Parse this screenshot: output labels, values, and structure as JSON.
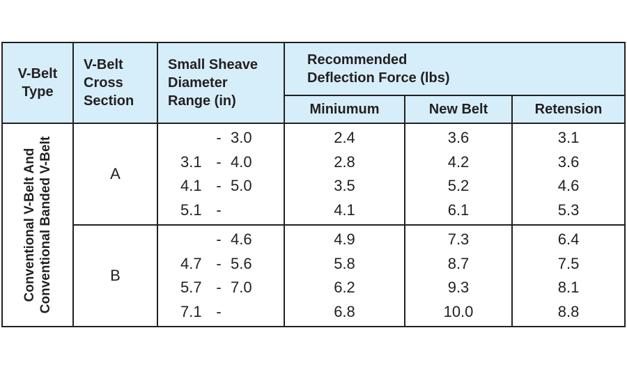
{
  "headers": {
    "type": [
      "V-Belt",
      "Type"
    ],
    "cross_section": [
      "V-Belt",
      "Cross",
      "Section"
    ],
    "diameter": [
      "Small Sheave",
      "Diameter",
      "Range (in)"
    ],
    "force_group": [
      "Recommended",
      "Deflection Force (lbs)"
    ],
    "minimum": "Miniumum",
    "new_belt": "New Belt",
    "retension": "Retension"
  },
  "type_label": [
    "Conventional V-Belt And",
    "Conventional Banded V-Belt"
  ],
  "groups": [
    {
      "section": "A",
      "ranges": [
        {
          "lo": "",
          "dash": "-",
          "hi": "3.0"
        },
        {
          "lo": "3.1",
          "dash": "-",
          "hi": "4.0"
        },
        {
          "lo": "4.1",
          "dash": "-",
          "hi": "5.0"
        },
        {
          "lo": "5.1",
          "dash": "-",
          "hi": ""
        }
      ],
      "minimum": [
        "2.4",
        "2.8",
        "3.5",
        "4.1"
      ],
      "new_belt": [
        "3.6",
        "4.2",
        "5.2",
        "6.1"
      ],
      "retension": [
        "3.1",
        "3.6",
        "4.6",
        "5.3"
      ]
    },
    {
      "section": "B",
      "ranges": [
        {
          "lo": "",
          "dash": "-",
          "hi": "4.6"
        },
        {
          "lo": "4.7",
          "dash": "-",
          "hi": "5.6"
        },
        {
          "lo": "5.7",
          "dash": "-",
          "hi": "7.0"
        },
        {
          "lo": "7.1",
          "dash": "-",
          "hi": ""
        }
      ],
      "minimum": [
        "4.9",
        "5.8",
        "6.2",
        "6.8"
      ],
      "new_belt": [
        "7.3",
        "8.7",
        "9.3",
        "10.0"
      ],
      "retension": [
        "6.4",
        "7.5",
        "8.1",
        "8.8"
      ]
    }
  ],
  "colors": {
    "header_bg": "#d6eefa",
    "border": "#231f20",
    "text": "#231f20"
  }
}
